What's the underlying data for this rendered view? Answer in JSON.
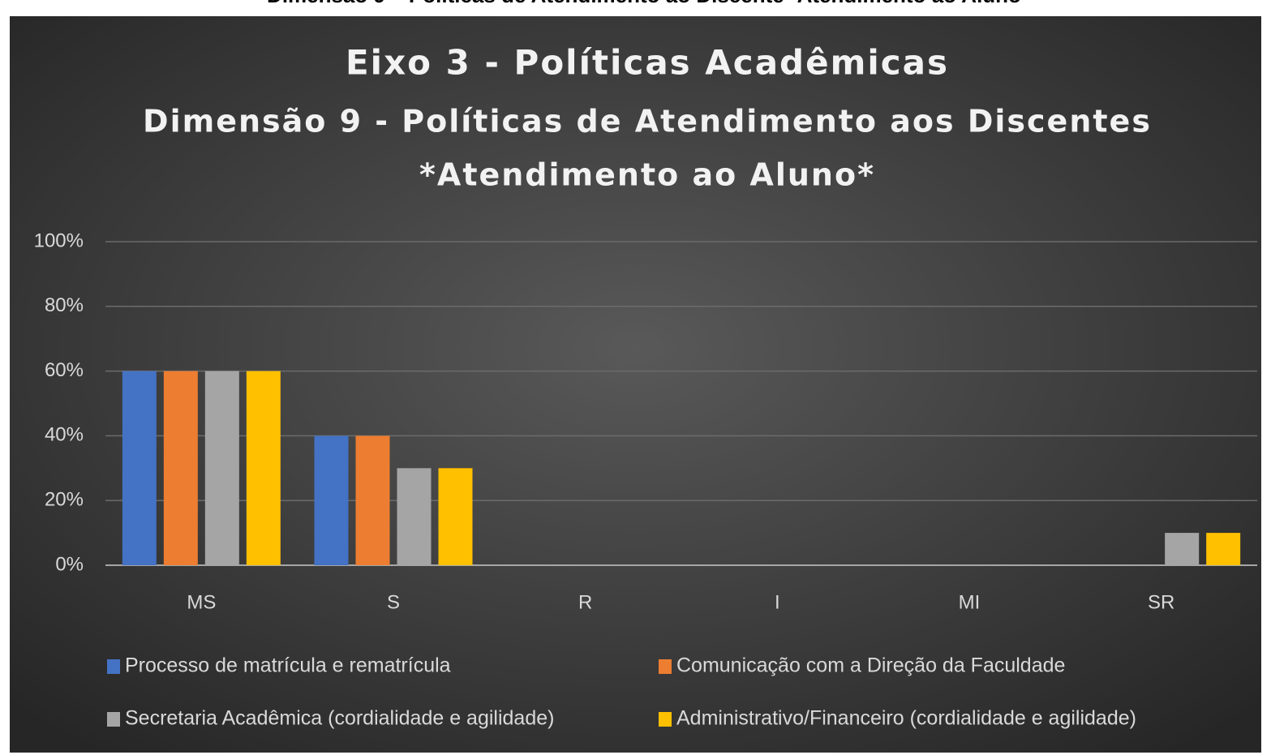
{
  "caption": "Dimensão 9 – Políticas de Atendimento ao Discente -Atendimento ao Aluno",
  "chart_data": {
    "type": "bar",
    "title": "Eixo 3 - Políticas Acadêmicas",
    "subtitle": "Dimensão 9 - Políticas de Atendimento aos Discentes",
    "subtitle2": "*Atendimento ao Aluno*",
    "categories": [
      "MS",
      "S",
      "R",
      "I",
      "MI",
      "SR"
    ],
    "series": [
      {
        "name": "Processo de matrícula e rematrícula",
        "color": "#4472c4",
        "values": [
          60,
          40,
          0,
          0,
          0,
          0
        ]
      },
      {
        "name": "Comunicação com a Direção da Faculdade",
        "color": "#ed7d31",
        "values": [
          60,
          40,
          0,
          0,
          0,
          0
        ]
      },
      {
        "name": "Secretaria Acadêmica (cordialidade e agilidade)",
        "color": "#a5a5a5",
        "values": [
          60,
          30,
          0,
          0,
          0,
          10
        ]
      },
      {
        "name": "Administrativo/Financeiro (cordialidade e agilidade)",
        "color": "#ffc000",
        "values": [
          60,
          30,
          0,
          0,
          0,
          10
        ]
      }
    ],
    "ylim": [
      0,
      100
    ],
    "yticks": [
      {
        "value": 0,
        "label": "0%"
      },
      {
        "value": 20,
        "label": "20%"
      },
      {
        "value": 40,
        "label": "40%"
      },
      {
        "value": 60,
        "label": "60%"
      },
      {
        "value": 80,
        "label": "80%"
      },
      {
        "value": 100,
        "label": "100%"
      }
    ],
    "grid": true,
    "legend": "bottom"
  }
}
